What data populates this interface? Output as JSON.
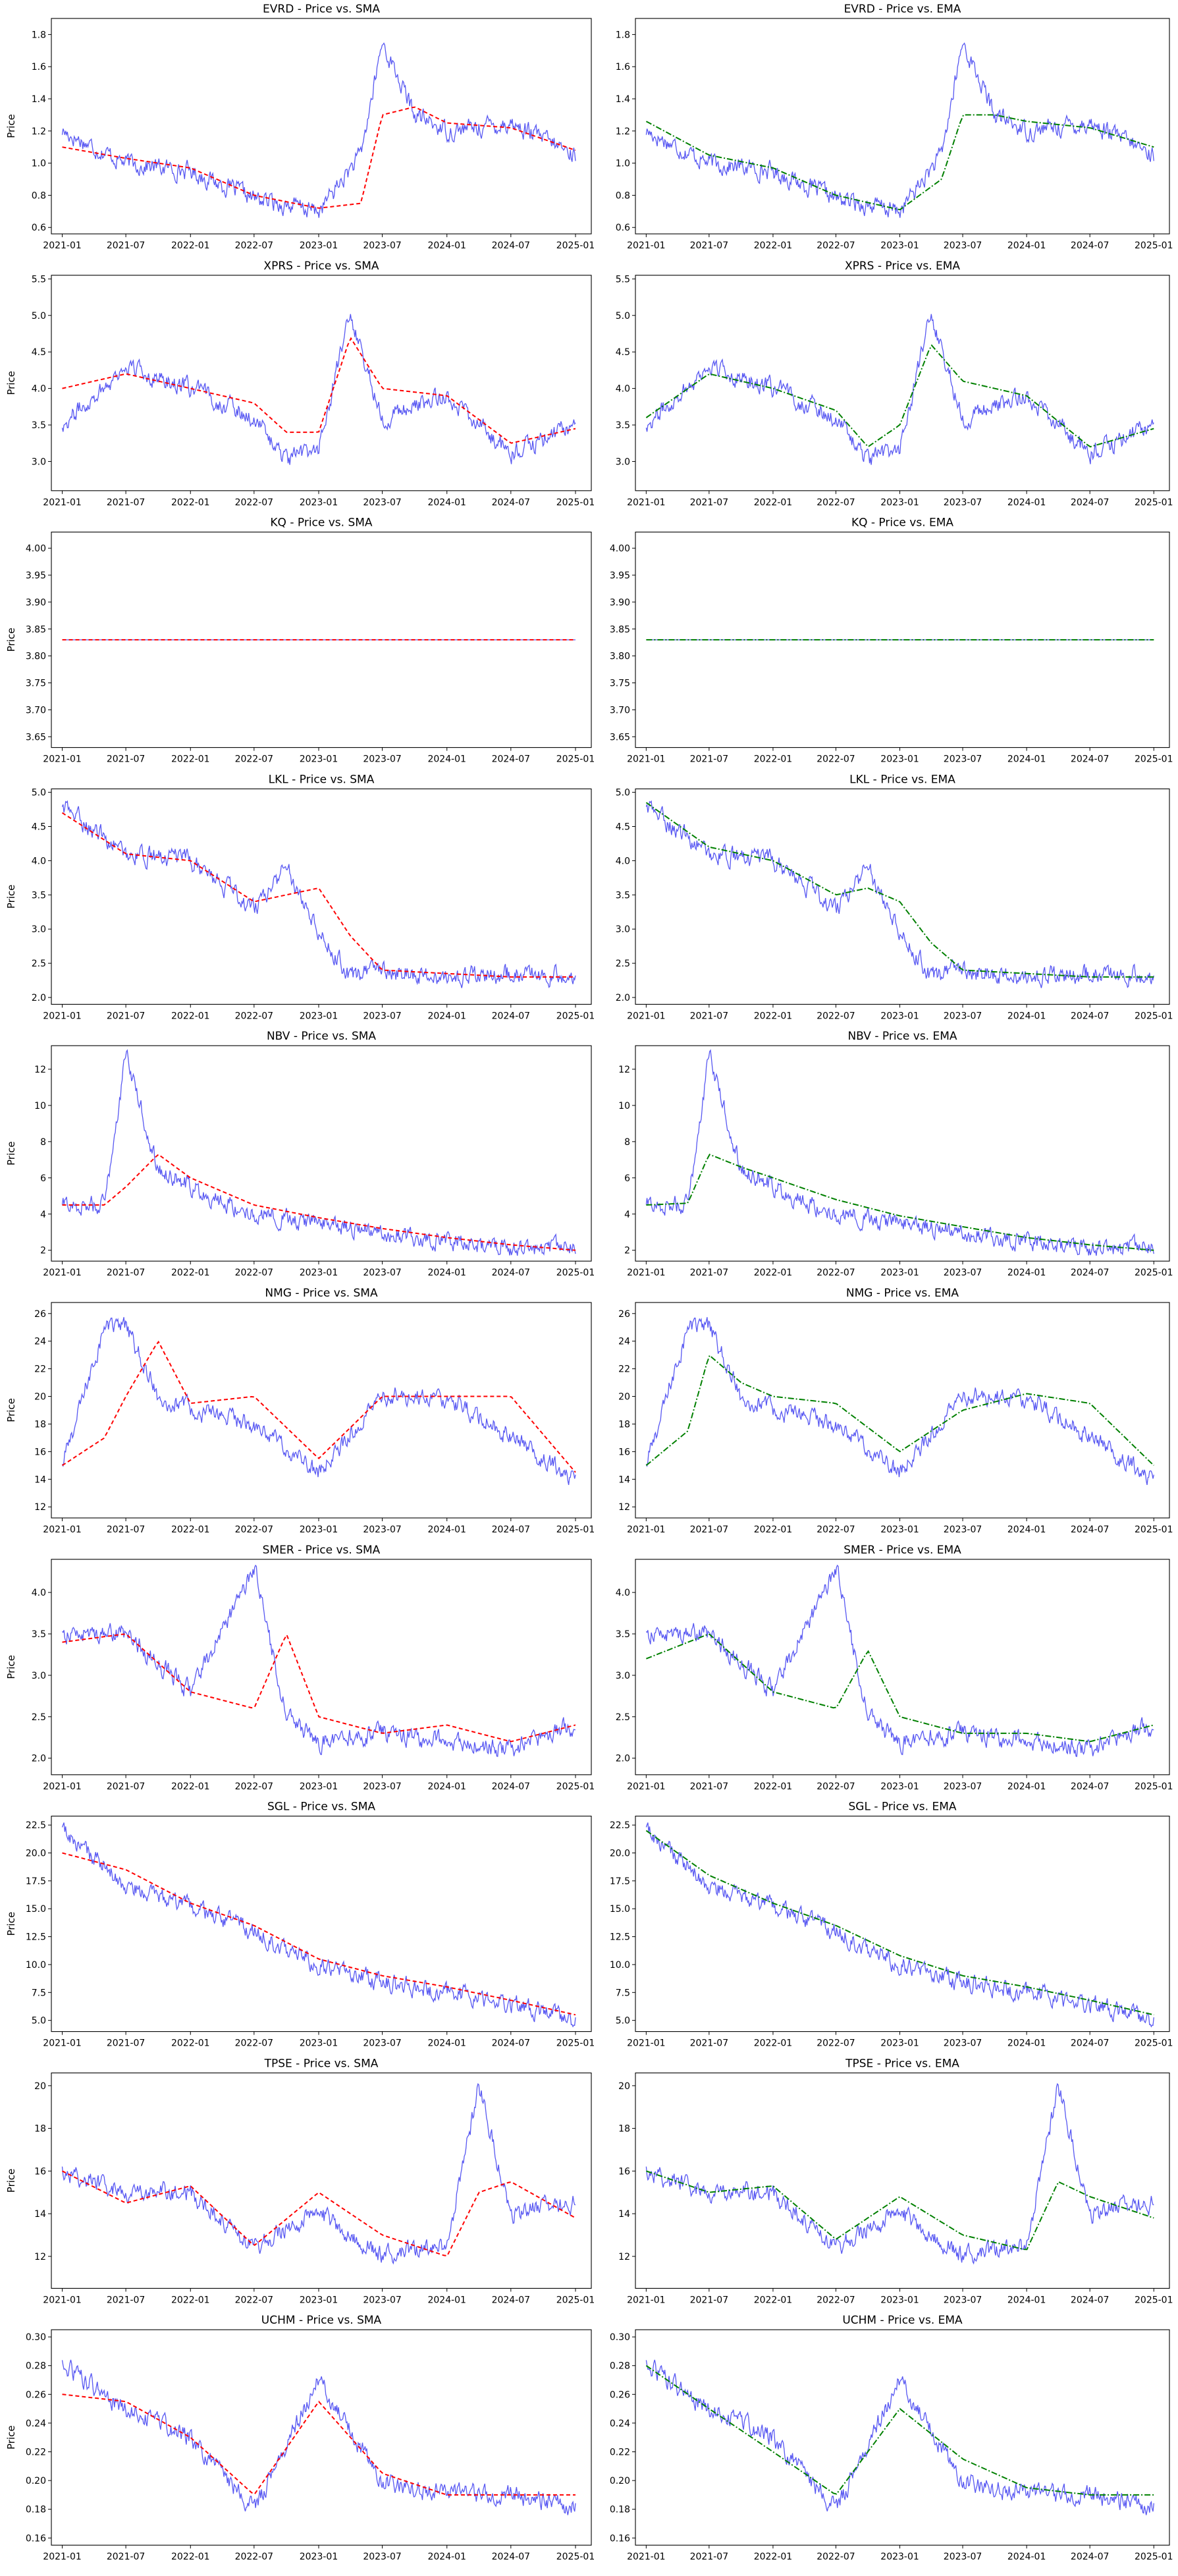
{
  "figure": {
    "ylabel": "Price",
    "xtick_labels": [
      "2021-01",
      "2021-07",
      "2022-01",
      "2022-07",
      "2023-01",
      "2023-07",
      "2024-01",
      "2024-07",
      "2025-01"
    ],
    "colors": {
      "price": "#3b3bf0",
      "sma": "#ff0000",
      "ema": "#008000"
    }
  },
  "chart_data": [
    {
      "type": "line",
      "title": "EVRD - Price vs. SMA",
      "ylabel": "Price",
      "yticks": [
        0.6,
        0.8,
        1.0,
        1.2,
        1.4,
        1.6,
        1.8
      ],
      "ylim": [
        0.56,
        1.9
      ],
      "x": [
        "2021-01",
        "2021-07",
        "2022-01",
        "2022-07",
        "2023-01",
        "2023-05",
        "2023-07",
        "2023-10",
        "2024-01",
        "2024-07",
        "2025-01"
      ],
      "series": [
        {
          "role": "price",
          "values": [
            1.2,
            1.0,
            0.95,
            0.78,
            0.7,
            1.05,
            1.75,
            1.3,
            1.2,
            1.25,
            1.05
          ]
        },
        {
          "role": "ma",
          "values": [
            1.1,
            1.03,
            0.97,
            0.8,
            0.72,
            0.75,
            1.3,
            1.35,
            1.25,
            1.22,
            1.08
          ]
        }
      ]
    },
    {
      "type": "line",
      "title": "EVRD - Price vs. EMA",
      "ylabel": "",
      "yticks": [
        0.6,
        0.8,
        1.0,
        1.2,
        1.4,
        1.6,
        1.8
      ],
      "ylim": [
        0.56,
        1.9
      ],
      "x": [
        "2021-01",
        "2021-07",
        "2022-01",
        "2022-07",
        "2023-01",
        "2023-05",
        "2023-07",
        "2023-10",
        "2024-01",
        "2024-07",
        "2025-01"
      ],
      "series": [
        {
          "role": "price",
          "values": [
            1.2,
            1.0,
            0.95,
            0.78,
            0.7,
            1.05,
            1.75,
            1.3,
            1.2,
            1.25,
            1.05
          ]
        },
        {
          "role": "ma",
          "values": [
            1.26,
            1.05,
            0.97,
            0.8,
            0.71,
            0.9,
            1.3,
            1.3,
            1.26,
            1.22,
            1.1
          ]
        }
      ]
    },
    {
      "type": "line",
      "title": "XPRS - Price vs. SMA",
      "ylabel": "Price",
      "yticks": [
        3.0,
        3.5,
        4.0,
        4.5,
        5.0,
        5.5
      ],
      "ylim": [
        2.6,
        5.55
      ],
      "x": [
        "2021-01",
        "2021-07",
        "2022-01",
        "2022-07",
        "2022-10",
        "2023-01",
        "2023-04",
        "2023-07",
        "2024-01",
        "2024-07",
        "2025-01"
      ],
      "series": [
        {
          "role": "price",
          "values": [
            3.5,
            4.3,
            4.0,
            3.6,
            3.0,
            3.2,
            5.0,
            3.6,
            3.9,
            3.1,
            3.5
          ]
        },
        {
          "role": "ma",
          "values": [
            4.0,
            4.2,
            4.0,
            3.8,
            3.4,
            3.4,
            4.7,
            4.0,
            3.9,
            3.25,
            3.45
          ]
        }
      ]
    },
    {
      "type": "line",
      "title": "XPRS - Price vs. EMA",
      "ylabel": "",
      "yticks": [
        3.0,
        3.5,
        4.0,
        4.5,
        5.0,
        5.5
      ],
      "ylim": [
        2.6,
        5.55
      ],
      "x": [
        "2021-01",
        "2021-07",
        "2022-01",
        "2022-07",
        "2022-10",
        "2023-01",
        "2023-04",
        "2023-07",
        "2024-01",
        "2024-07",
        "2025-01"
      ],
      "series": [
        {
          "role": "price",
          "values": [
            3.5,
            4.3,
            4.0,
            3.6,
            3.0,
            3.2,
            5.0,
            3.6,
            3.9,
            3.1,
            3.5
          ]
        },
        {
          "role": "ma",
          "values": [
            3.6,
            4.2,
            4.0,
            3.7,
            3.2,
            3.5,
            4.6,
            4.1,
            3.9,
            3.2,
            3.45
          ]
        }
      ]
    },
    {
      "type": "line",
      "title": "KQ - Price vs. SMA",
      "ylabel": "Price",
      "yticks": [
        3.65,
        3.7,
        3.75,
        3.8,
        3.85,
        3.9,
        3.95,
        4.0
      ],
      "ylim": [
        3.63,
        4.03
      ],
      "x": [
        "2021-01",
        "2025-01"
      ],
      "series": [
        {
          "role": "price",
          "values": [
            3.83,
            3.83
          ]
        },
        {
          "role": "ma",
          "values": [
            3.83,
            3.83
          ]
        }
      ]
    },
    {
      "type": "line",
      "title": "KQ - Price vs. EMA",
      "ylabel": "",
      "yticks": [
        3.65,
        3.7,
        3.75,
        3.8,
        3.85,
        3.9,
        3.95,
        4.0
      ],
      "ylim": [
        3.63,
        4.03
      ],
      "x": [
        "2021-01",
        "2025-01"
      ],
      "series": [
        {
          "role": "price",
          "values": [
            3.83,
            3.83
          ]
        },
        {
          "role": "ma",
          "values": [
            3.83,
            3.83
          ]
        }
      ]
    },
    {
      "type": "line",
      "title": "LKL - Price vs. SMA",
      "ylabel": "Price",
      "yticks": [
        2.0,
        2.5,
        3.0,
        3.5,
        4.0,
        4.5,
        5.0
      ],
      "ylim": [
        1.9,
        5.05
      ],
      "x": [
        "2021-01",
        "2021-07",
        "2022-01",
        "2022-07",
        "2022-10",
        "2023-01",
        "2023-04",
        "2023-07",
        "2024-01",
        "2024-07",
        "2025-01"
      ],
      "series": [
        {
          "role": "price",
          "values": [
            4.8,
            4.1,
            4.0,
            3.3,
            3.9,
            3.0,
            2.3,
            2.4,
            2.3,
            2.35,
            2.3
          ]
        },
        {
          "role": "ma",
          "values": [
            4.7,
            4.1,
            4.0,
            3.4,
            3.5,
            3.6,
            2.9,
            2.4,
            2.35,
            2.3,
            2.3
          ]
        }
      ]
    },
    {
      "type": "line",
      "title": "LKL - Price vs. EMA",
      "ylabel": "",
      "yticks": [
        2.0,
        2.5,
        3.0,
        3.5,
        4.0,
        4.5,
        5.0
      ],
      "ylim": [
        1.9,
        5.05
      ],
      "x": [
        "2021-01",
        "2021-07",
        "2022-01",
        "2022-07",
        "2022-10",
        "2023-01",
        "2023-04",
        "2023-07",
        "2024-01",
        "2024-07",
        "2025-01"
      ],
      "series": [
        {
          "role": "price",
          "values": [
            4.8,
            4.1,
            4.0,
            3.3,
            3.9,
            3.0,
            2.3,
            2.4,
            2.3,
            2.35,
            2.3
          ]
        },
        {
          "role": "ma",
          "values": [
            4.85,
            4.2,
            4.0,
            3.5,
            3.6,
            3.4,
            2.8,
            2.4,
            2.35,
            2.3,
            2.3
          ]
        }
      ]
    },
    {
      "type": "line",
      "title": "NBV - Price vs. SMA",
      "ylabel": "Price",
      "yticks": [
        2,
        4,
        6,
        8,
        10,
        12
      ],
      "ylim": [
        1.4,
        13.3
      ],
      "x": [
        "2021-01",
        "2021-05",
        "2021-07",
        "2021-10",
        "2022-01",
        "2022-07",
        "2023-01",
        "2023-07",
        "2024-01",
        "2024-07",
        "2025-01"
      ],
      "series": [
        {
          "role": "price",
          "values": [
            4.5,
            4.5,
            12.8,
            6.5,
            5.5,
            4.0,
            3.5,
            3.0,
            2.5,
            2.2,
            2.0
          ]
        },
        {
          "role": "ma",
          "values": [
            4.5,
            4.5,
            5.5,
            7.3,
            6.0,
            4.5,
            3.8,
            3.2,
            2.7,
            2.3,
            2.0
          ]
        }
      ]
    },
    {
      "type": "line",
      "title": "NBV - Price vs. EMA",
      "ylabel": "",
      "yticks": [
        2,
        4,
        6,
        8,
        10,
        12
      ],
      "ylim": [
        1.4,
        13.3
      ],
      "x": [
        "2021-01",
        "2021-05",
        "2021-07",
        "2021-10",
        "2022-01",
        "2022-07",
        "2023-01",
        "2023-07",
        "2024-01",
        "2024-07",
        "2025-01"
      ],
      "series": [
        {
          "role": "price",
          "values": [
            4.5,
            4.5,
            12.8,
            6.5,
            5.5,
            4.0,
            3.5,
            3.0,
            2.5,
            2.2,
            2.0
          ]
        },
        {
          "role": "ma",
          "values": [
            4.5,
            4.6,
            7.3,
            6.6,
            6.0,
            4.8,
            3.9,
            3.3,
            2.7,
            2.3,
            2.0
          ]
        }
      ]
    },
    {
      "type": "line",
      "title": "NMG - Price vs. SMA",
      "ylabel": "Price",
      "yticks": [
        12,
        14,
        16,
        18,
        20,
        22,
        24,
        26
      ],
      "ylim": [
        11.2,
        26.8
      ],
      "x": [
        "2021-01",
        "2021-05",
        "2021-07",
        "2021-10",
        "2022-01",
        "2022-07",
        "2023-01",
        "2023-07",
        "2024-01",
        "2024-07",
        "2025-01"
      ],
      "series": [
        {
          "role": "price",
          "values": [
            15.0,
            25.0,
            25.0,
            20.0,
            19.0,
            18.0,
            14.5,
            20.0,
            20.0,
            17.0,
            14.0
          ]
        },
        {
          "role": "ma",
          "values": [
            15.0,
            17.0,
            20.0,
            24.0,
            19.5,
            20.0,
            15.5,
            20.0,
            20.0,
            20.0,
            14.5
          ]
        }
      ]
    },
    {
      "type": "line",
      "title": "NMG - Price vs. EMA",
      "ylabel": "",
      "yticks": [
        12,
        14,
        16,
        18,
        20,
        22,
        24,
        26
      ],
      "ylim": [
        11.2,
        26.8
      ],
      "x": [
        "2021-01",
        "2021-05",
        "2021-07",
        "2021-10",
        "2022-01",
        "2022-07",
        "2023-01",
        "2023-07",
        "2024-01",
        "2024-07",
        "2025-01"
      ],
      "series": [
        {
          "role": "price",
          "values": [
            15.0,
            25.0,
            25.0,
            20.0,
            19.0,
            18.0,
            14.5,
            20.0,
            20.0,
            17.0,
            14.0
          ]
        },
        {
          "role": "ma",
          "values": [
            15.0,
            17.5,
            23.0,
            21.0,
            20.0,
            19.5,
            16.0,
            19.0,
            20.2,
            19.5,
            15.0
          ]
        }
      ]
    },
    {
      "type": "line",
      "title": "SMER - Price vs. SMA",
      "ylabel": "Price",
      "yticks": [
        2.0,
        2.5,
        3.0,
        3.5,
        4.0
      ],
      "ylim": [
        1.8,
        4.4
      ],
      "x": [
        "2021-01",
        "2021-07",
        "2022-01",
        "2022-07",
        "2022-10",
        "2023-01",
        "2023-07",
        "2024-01",
        "2024-07",
        "2025-01"
      ],
      "series": [
        {
          "role": "price",
          "values": [
            3.5,
            3.5,
            2.8,
            4.3,
            2.5,
            2.2,
            2.3,
            2.2,
            2.1,
            2.4
          ]
        },
        {
          "role": "ma",
          "values": [
            3.4,
            3.5,
            2.8,
            2.6,
            3.5,
            2.5,
            2.3,
            2.4,
            2.2,
            2.4
          ]
        }
      ]
    },
    {
      "type": "line",
      "title": "SMER - Price vs. EMA",
      "ylabel": "",
      "yticks": [
        2.0,
        2.5,
        3.0,
        3.5,
        4.0
      ],
      "ylim": [
        1.8,
        4.4
      ],
      "x": [
        "2021-01",
        "2021-07",
        "2022-01",
        "2022-07",
        "2022-10",
        "2023-01",
        "2023-07",
        "2024-01",
        "2024-07",
        "2025-01"
      ],
      "series": [
        {
          "role": "price",
          "values": [
            3.5,
            3.5,
            2.8,
            4.3,
            2.5,
            2.2,
            2.3,
            2.2,
            2.1,
            2.4
          ]
        },
        {
          "role": "ma",
          "values": [
            3.2,
            3.5,
            2.8,
            2.6,
            3.3,
            2.5,
            2.3,
            2.3,
            2.2,
            2.4
          ]
        }
      ]
    },
    {
      "type": "line",
      "title": "SGL - Price vs. SMA",
      "ylabel": "Price",
      "yticks": [
        5.0,
        7.5,
        10.0,
        12.5,
        15.0,
        17.5,
        20.0,
        22.5
      ],
      "ylim": [
        4.0,
        23.3
      ],
      "x": [
        "2021-01",
        "2021-07",
        "2022-01",
        "2022-07",
        "2023-01",
        "2023-07",
        "2024-01",
        "2024-07",
        "2025-01"
      ],
      "series": [
        {
          "role": "price",
          "values": [
            22.0,
            17.0,
            15.0,
            13.0,
            10.0,
            8.5,
            7.5,
            6.5,
            5.0
          ]
        },
        {
          "role": "ma",
          "values": [
            20.0,
            18.5,
            15.5,
            13.5,
            10.5,
            9.0,
            8.0,
            6.8,
            5.5
          ]
        }
      ]
    },
    {
      "type": "line",
      "title": "SGL - Price vs. EMA",
      "ylabel": "",
      "yticks": [
        5.0,
        7.5,
        10.0,
        12.5,
        15.0,
        17.5,
        20.0,
        22.5
      ],
      "ylim": [
        4.0,
        23.3
      ],
      "x": [
        "2021-01",
        "2021-07",
        "2022-01",
        "2022-07",
        "2023-01",
        "2023-07",
        "2024-01",
        "2024-07",
        "2025-01"
      ],
      "series": [
        {
          "role": "price",
          "values": [
            22.0,
            17.0,
            15.0,
            13.0,
            10.0,
            8.5,
            7.5,
            6.5,
            5.0
          ]
        },
        {
          "role": "ma",
          "values": [
            22.0,
            18.0,
            15.5,
            13.5,
            10.8,
            9.0,
            8.0,
            6.8,
            5.5
          ]
        }
      ]
    },
    {
      "type": "line",
      "title": "TPSE - Price vs. SMA",
      "ylabel": "Price",
      "yticks": [
        12,
        14,
        16,
        18,
        20
      ],
      "ylim": [
        10.5,
        20.6
      ],
      "x": [
        "2021-01",
        "2021-07",
        "2022-01",
        "2022-07",
        "2023-01",
        "2023-07",
        "2024-01",
        "2024-04",
        "2024-07",
        "2025-01"
      ],
      "series": [
        {
          "role": "price",
          "values": [
            16.0,
            15.0,
            15.0,
            12.5,
            14.0,
            12.0,
            12.5,
            20.0,
            14.0,
            14.5
          ]
        },
        {
          "role": "ma",
          "values": [
            16.0,
            14.5,
            15.3,
            12.5,
            15.0,
            13.0,
            12.0,
            15.0,
            15.5,
            13.8
          ]
        }
      ]
    },
    {
      "type": "line",
      "title": "TPSE - Price vs. EMA",
      "ylabel": "",
      "yticks": [
        12,
        14,
        16,
        18,
        20
      ],
      "ylim": [
        10.5,
        20.6
      ],
      "x": [
        "2021-01",
        "2021-07",
        "2022-01",
        "2022-07",
        "2023-01",
        "2023-07",
        "2024-01",
        "2024-04",
        "2024-07",
        "2025-01"
      ],
      "series": [
        {
          "role": "price",
          "values": [
            16.0,
            15.0,
            15.0,
            12.5,
            14.0,
            12.0,
            12.5,
            20.0,
            14.0,
            14.5
          ]
        },
        {
          "role": "ma",
          "values": [
            16.0,
            15.0,
            15.3,
            12.8,
            14.8,
            13.0,
            12.3,
            15.5,
            14.8,
            13.8
          ]
        }
      ]
    },
    {
      "type": "line",
      "title": "UCHM - Price vs. SMA",
      "ylabel": "Price",
      "yticks": [
        0.16,
        0.18,
        0.2,
        0.22,
        0.24,
        0.26,
        0.28,
        0.3
      ],
      "ylim": [
        0.155,
        0.305
      ],
      "x": [
        "2021-01",
        "2021-07",
        "2022-01",
        "2022-07",
        "2023-01",
        "2023-07",
        "2024-01",
        "2024-07",
        "2025-01"
      ],
      "series": [
        {
          "role": "price",
          "values": [
            0.28,
            0.25,
            0.23,
            0.18,
            0.27,
            0.2,
            0.19,
            0.19,
            0.18
          ]
        },
        {
          "role": "ma",
          "values": [
            0.26,
            0.255,
            0.23,
            0.19,
            0.255,
            0.205,
            0.19,
            0.19,
            0.19
          ]
        }
      ]
    },
    {
      "type": "line",
      "title": "UCHM - Price vs. EMA",
      "ylabel": "",
      "yticks": [
        0.16,
        0.18,
        0.2,
        0.22,
        0.24,
        0.26,
        0.28,
        0.3
      ],
      "ylim": [
        0.155,
        0.305
      ],
      "x": [
        "2021-01",
        "2021-07",
        "2022-01",
        "2022-07",
        "2023-01",
        "2023-07",
        "2024-01",
        "2024-07",
        "2025-01"
      ],
      "series": [
        {
          "role": "price",
          "values": [
            0.28,
            0.25,
            0.23,
            0.18,
            0.27,
            0.2,
            0.19,
            0.19,
            0.18
          ]
        },
        {
          "role": "ma",
          "values": [
            0.28,
            0.25,
            0.22,
            0.19,
            0.25,
            0.215,
            0.195,
            0.19,
            0.19
          ]
        }
      ]
    }
  ]
}
